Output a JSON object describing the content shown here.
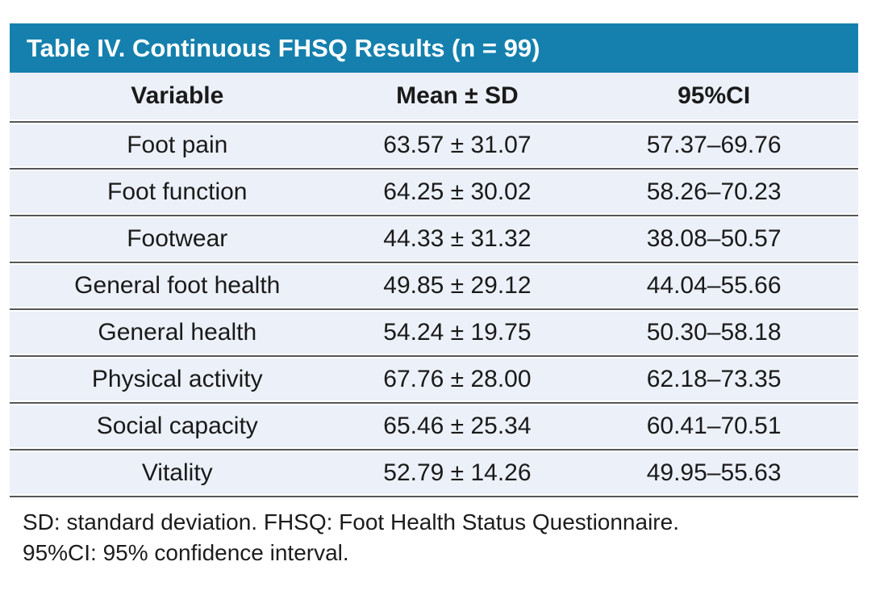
{
  "table": {
    "title": "Table IV. Continuous FHSQ Results (n = 99)",
    "columns": [
      "Variable",
      "Mean ± SD",
      "95%CI"
    ],
    "rows": [
      {
        "variable": "Foot pain",
        "mean_sd": "63.57 ± 31.07",
        "ci": "57.37–69.76"
      },
      {
        "variable": "Foot function",
        "mean_sd": "64.25 ± 30.02",
        "ci": "58.26–70.23"
      },
      {
        "variable": "Footwear",
        "mean_sd": "44.33 ± 31.32",
        "ci": "38.08–50.57"
      },
      {
        "variable": "General foot health",
        "mean_sd": "49.85 ± 29.12",
        "ci": "44.04–55.66"
      },
      {
        "variable": "General health",
        "mean_sd": "54.24 ± 19.75",
        "ci": "50.30–58.18"
      },
      {
        "variable": "Physical activity",
        "mean_sd": "67.76 ± 28.00",
        "ci": "62.18–73.35"
      },
      {
        "variable": "Social capacity",
        "mean_sd": "65.46 ± 25.34",
        "ci": "60.41–70.51"
      },
      {
        "variable": "Vitality",
        "mean_sd": "52.79 ± 14.26",
        "ci": "49.95–55.63"
      }
    ],
    "footnotes": [
      "SD: standard deviation. FHSQ: Foot Health Status Questionnaire.",
      "95%CI: 95% confidence interval."
    ]
  },
  "colors": {
    "header_bar_bg": "#1580ad",
    "row_bg": "#ecf0f8",
    "divider": "#54565a",
    "title_text": "#ffffff",
    "body_text": "#1a1a1a"
  },
  "chart_data": {
    "type": "table",
    "title": "Table IV. Continuous FHSQ Results (n = 99)",
    "columns": [
      "Variable",
      "Mean ± SD",
      "95%CI"
    ],
    "rows": [
      [
        "Foot pain",
        "63.57 ± 31.07",
        "57.37–69.76"
      ],
      [
        "Foot function",
        "64.25 ± 30.02",
        "58.26–70.23"
      ],
      [
        "Footwear",
        "44.33 ± 31.32",
        "38.08–50.57"
      ],
      [
        "General foot health",
        "49.85 ± 29.12",
        "44.04–55.66"
      ],
      [
        "General health",
        "54.24 ± 19.75",
        "50.30–58.18"
      ],
      [
        "Physical activity",
        "67.76 ± 28.00",
        "62.18–73.35"
      ],
      [
        "Social capacity",
        "65.46 ± 25.34",
        "60.41–70.51"
      ],
      [
        "Vitality",
        "52.79 ± 14.26",
        "49.95–55.63"
      ]
    ]
  }
}
